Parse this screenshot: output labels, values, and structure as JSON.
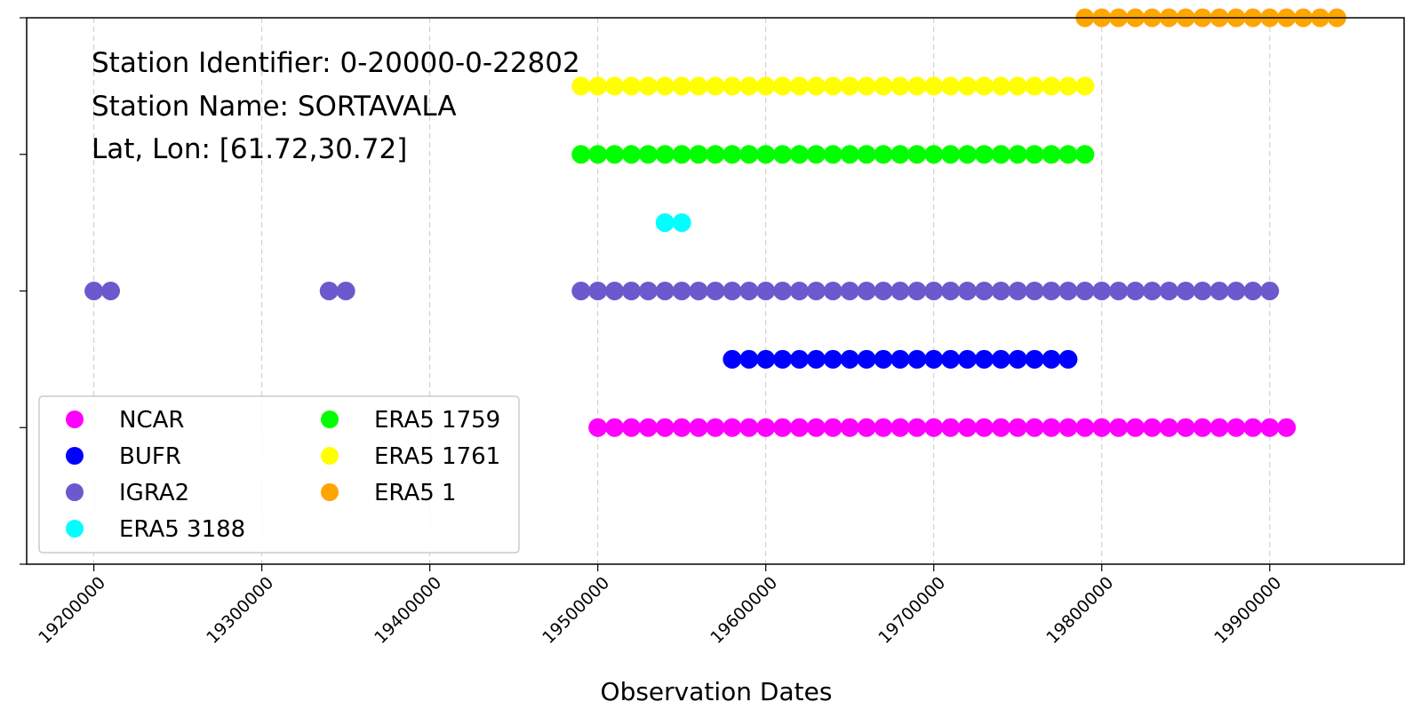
{
  "chart_data": {
    "type": "scatter",
    "annotation_lines": [
      "Station Identifier: 0-20000-0-22802",
      "Station Name: SORTAVALA",
      "Lat, Lon:  [61.72,30.72]"
    ],
    "xlabel": "Observation Dates",
    "ylabel": "",
    "xlim": [
      19160000,
      19980000
    ],
    "ylim": [
      0,
      8
    ],
    "x_ticks": [
      19200000,
      19300000,
      19400000,
      19500000,
      19600000,
      19700000,
      19800000,
      19900000
    ],
    "x_tick_labels": [
      "19200000",
      "19300000",
      "19400000",
      "19500000",
      "19600000",
      "19700000",
      "19800000",
      "19900000"
    ],
    "y_ticks": [
      0,
      2,
      4,
      6,
      8
    ],
    "grid": "x-dashed",
    "legend_placement": "lower-left",
    "series": [
      {
        "name": "NCAR",
        "color": "#ff00ff",
        "y": 2,
        "x": [
          19500000,
          19510000,
          19520000,
          19530000,
          19540000,
          19550000,
          19560000,
          19570000,
          19580000,
          19590000,
          19600000,
          19610000,
          19620000,
          19630000,
          19640000,
          19650000,
          19660000,
          19670000,
          19680000,
          19690000,
          19700000,
          19710000,
          19720000,
          19730000,
          19740000,
          19750000,
          19760000,
          19770000,
          19780000,
          19790000,
          19800000,
          19810000,
          19820000,
          19830000,
          19840000,
          19850000,
          19860000,
          19870000,
          19880000,
          19890000,
          19900000,
          19910000
        ]
      },
      {
        "name": "BUFR",
        "color": "#0000ff",
        "y": 3,
        "x": [
          19580000,
          19590000,
          19600000,
          19610000,
          19620000,
          19630000,
          19640000,
          19650000,
          19660000,
          19670000,
          19680000,
          19690000,
          19700000,
          19710000,
          19720000,
          19730000,
          19740000,
          19750000,
          19760000,
          19770000,
          19780000
        ]
      },
      {
        "name": "IGRA2",
        "color": "#6a5acd",
        "y": 4,
        "x": [
          19200000,
          19210000,
          19340000,
          19350000,
          19490000,
          19500000,
          19510000,
          19520000,
          19530000,
          19540000,
          19550000,
          19560000,
          19570000,
          19580000,
          19590000,
          19600000,
          19610000,
          19620000,
          19630000,
          19640000,
          19650000,
          19660000,
          19670000,
          19680000,
          19690000,
          19700000,
          19710000,
          19720000,
          19730000,
          19740000,
          19750000,
          19760000,
          19770000,
          19780000,
          19790000,
          19800000,
          19810000,
          19820000,
          19830000,
          19840000,
          19850000,
          19860000,
          19870000,
          19880000,
          19890000,
          19900000
        ]
      },
      {
        "name": "ERA5 3188",
        "color": "#00ffff",
        "y": 5,
        "x": [
          19540000,
          19550000
        ]
      },
      {
        "name": "ERA5 1759",
        "color": "#00ff00",
        "y": 6,
        "x": [
          19490000,
          19500000,
          19510000,
          19520000,
          19530000,
          19540000,
          19550000,
          19560000,
          19570000,
          19580000,
          19590000,
          19600000,
          19610000,
          19620000,
          19630000,
          19640000,
          19650000,
          19660000,
          19670000,
          19680000,
          19690000,
          19700000,
          19710000,
          19720000,
          19730000,
          19740000,
          19750000,
          19760000,
          19770000,
          19780000,
          19790000
        ]
      },
      {
        "name": "ERA5 1761",
        "color": "#ffff00",
        "y": 7,
        "x": [
          19490000,
          19500000,
          19510000,
          19520000,
          19530000,
          19540000,
          19550000,
          19560000,
          19570000,
          19580000,
          19590000,
          19600000,
          19610000,
          19620000,
          19630000,
          19640000,
          19650000,
          19660000,
          19670000,
          19680000,
          19690000,
          19700000,
          19710000,
          19720000,
          19730000,
          19740000,
          19750000,
          19760000,
          19770000,
          19780000,
          19790000
        ]
      },
      {
        "name": "ERA5 1",
        "color": "#ffa500",
        "y": 8,
        "x": [
          19790000,
          19800000,
          19810000,
          19820000,
          19830000,
          19840000,
          19850000,
          19860000,
          19870000,
          19880000,
          19890000,
          19900000,
          19910000,
          19920000,
          19930000,
          19940000
        ]
      }
    ]
  }
}
